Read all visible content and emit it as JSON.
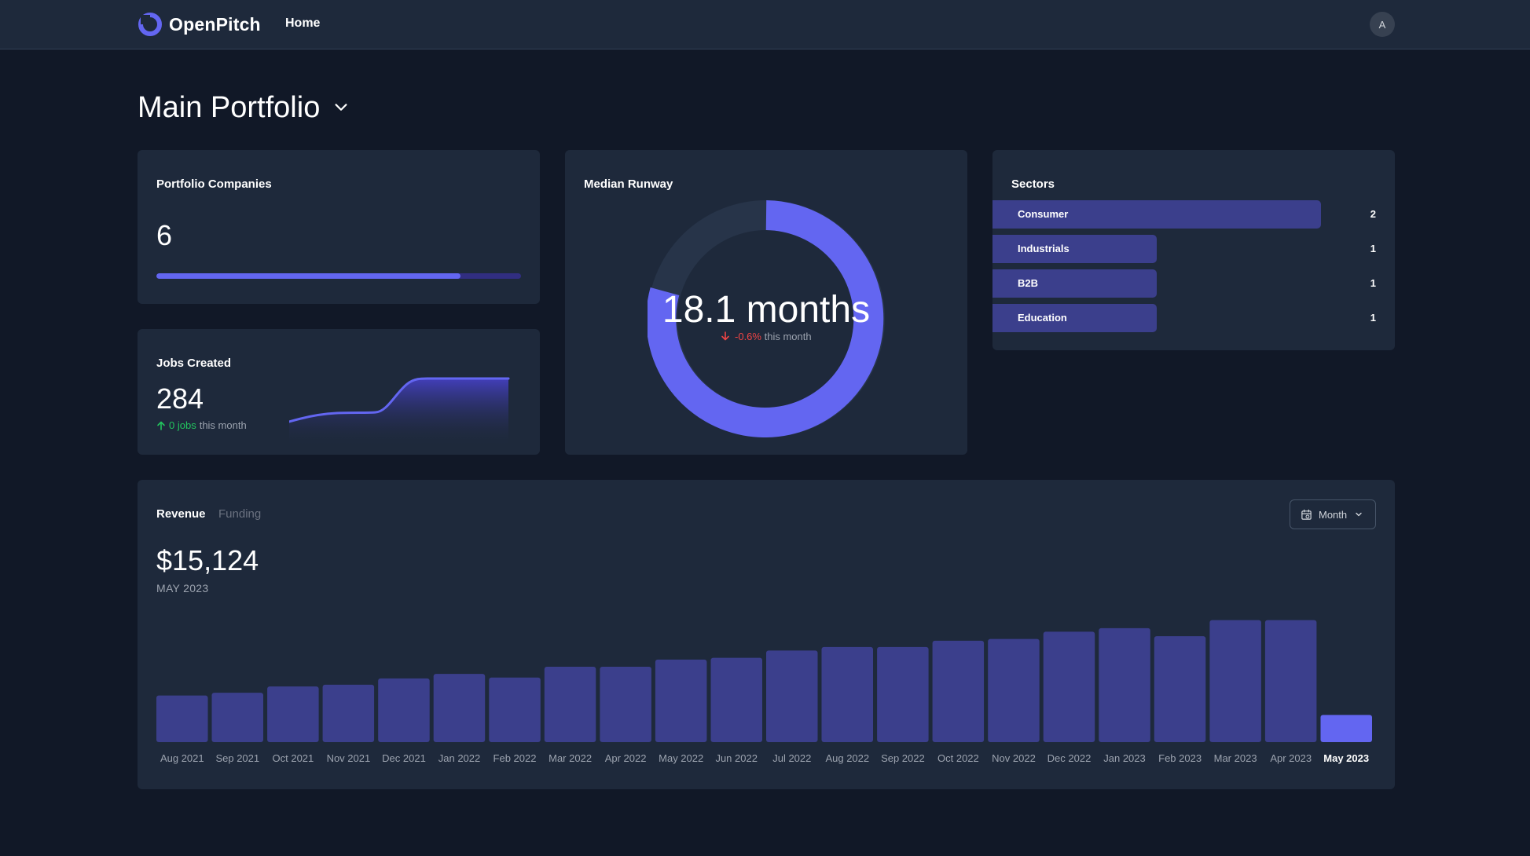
{
  "nav": {
    "brand": "OpenPitch",
    "home": "Home",
    "avatar_initial": "A"
  },
  "page": {
    "title": "Main Portfolio"
  },
  "colors": {
    "accent": "#6366f1",
    "accent_dim": "#3b3f8c",
    "card_bg": "#1e293b",
    "page_bg": "#111827",
    "positive": "#22c55e",
    "negative": "#ef4444"
  },
  "portfolio_companies": {
    "title": "Portfolio Companies",
    "value": "6",
    "bar_fraction": 0.835
  },
  "jobs_created": {
    "title": "Jobs Created",
    "value": "284",
    "change_value": "0 jobs",
    "change_suffix": "this month",
    "direction_icon": "arrow-up-icon"
  },
  "median_runway": {
    "title": "Median Runway",
    "value": "18.1 months",
    "change_value": "-0.6%",
    "change_suffix": "this month",
    "direction_icon": "arrow-down-icon"
  },
  "sectors": {
    "title": "Sectors",
    "items": [
      {
        "label": "Consumer",
        "count": "2"
      },
      {
        "label": "Industrials",
        "count": "1"
      },
      {
        "label": "B2B",
        "count": "1"
      },
      {
        "label": "Education",
        "count": "1"
      }
    ]
  },
  "revenue": {
    "tabs": [
      "Revenue",
      "Funding"
    ],
    "period_select": "Month",
    "value": "$15,124",
    "period": "MAY 2023"
  },
  "chart_data": {
    "type": "bar",
    "title": "Revenue",
    "categories": [
      "Aug 2021",
      "Sep 2021",
      "Oct 2021",
      "Nov 2021",
      "Dec 2021",
      "Jan 2022",
      "Feb 2022",
      "Mar 2022",
      "Apr 2022",
      "May 2022",
      "Jun 2022",
      "Jul 2022",
      "Aug 2022",
      "Sep 2022",
      "Oct 2022",
      "Nov 2022",
      "Dec 2022",
      "Jan 2023",
      "Feb 2023",
      "Mar 2023",
      "Apr 2023",
      "May 2023"
    ],
    "values": [
      26000,
      27500,
      31000,
      32000,
      35500,
      38000,
      36000,
      42000,
      42000,
      46000,
      47000,
      51000,
      53000,
      53000,
      56500,
      57500,
      61500,
      63500,
      59000,
      68000,
      68000,
      15124
    ],
    "highlighted": "May 2023",
    "ylim": [
      0,
      70000
    ],
    "grid": false,
    "legend": "none"
  }
}
